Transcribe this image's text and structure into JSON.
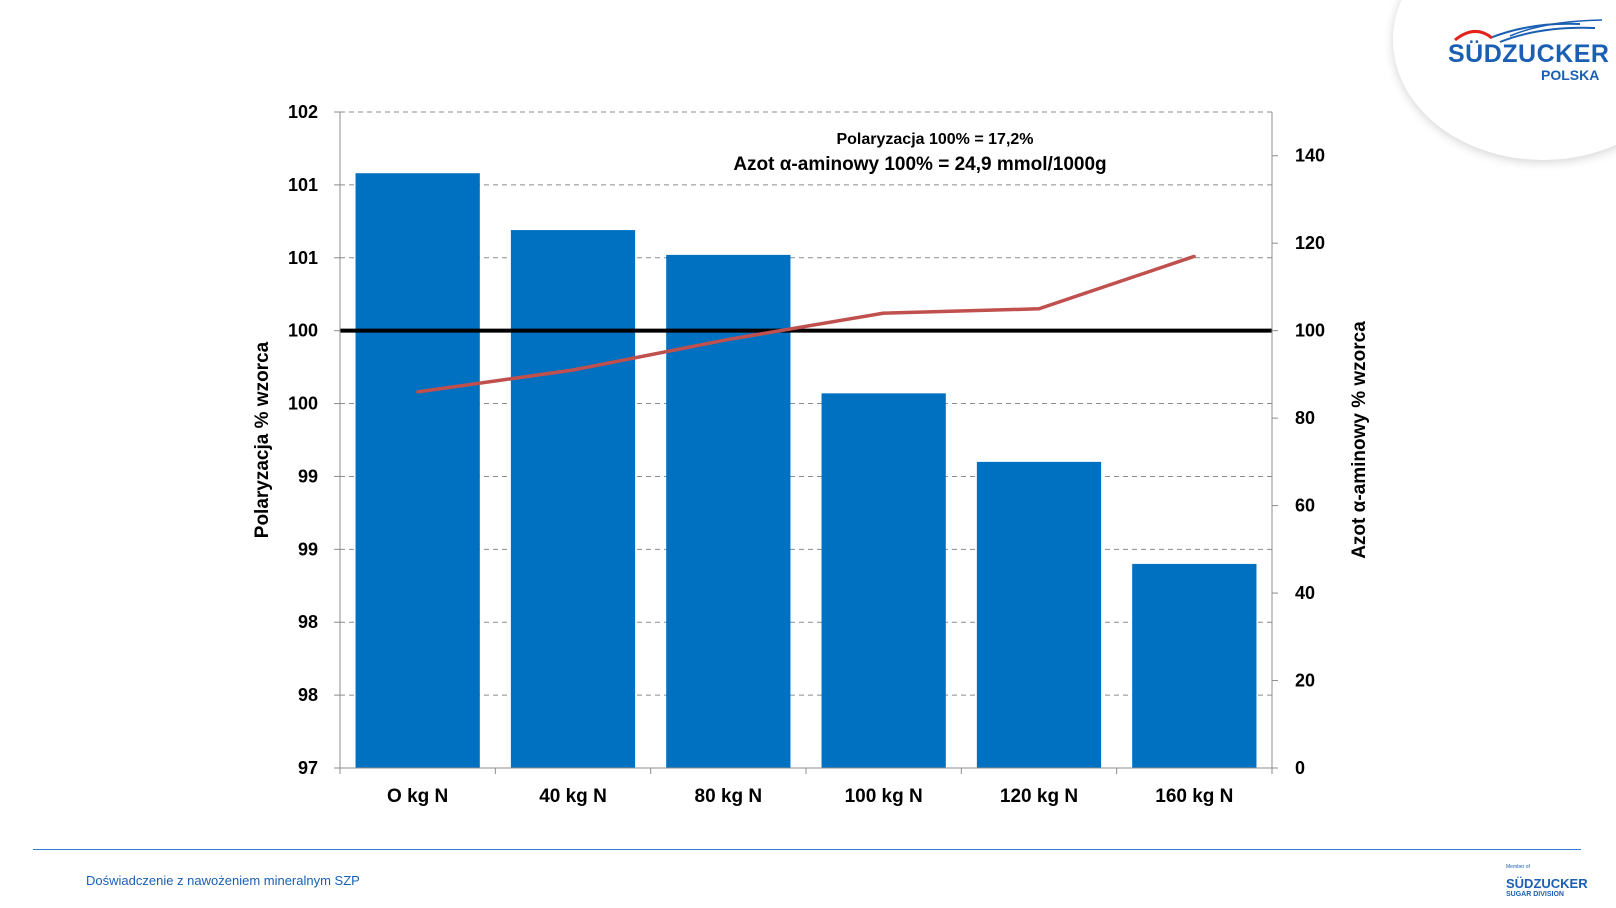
{
  "logo": {
    "brand": "SÜDZUCKER",
    "sub": "POLSKA"
  },
  "footer": {
    "caption": "Doświadczenie z nawożeniem mineralnym SZP",
    "logo_member": "Member of",
    "logo_brand": "SÜDZUCKER",
    "logo_division": "SUGAR DIVISION"
  },
  "chart_data": {
    "type": "bar",
    "annotation_line1": "Polaryzacja 100% = 17,2%",
    "annotation_line2": "Azot α-aminowy 100% = 24,9 mmol/1000g",
    "categories": [
      "O kg N",
      "40 kg N",
      "80 kg N",
      "100 kg N",
      "120 kg N",
      "160 kg N"
    ],
    "y_left": {
      "label": "Polaryzacja % wzorca",
      "range": [
        97,
        101.5
      ],
      "ticks": [
        97,
        97.5,
        98,
        98.5,
        99,
        99.5,
        100,
        100.5,
        101,
        101.5
      ],
      "tick_labels": [
        "97",
        "98",
        "98",
        "99",
        "99",
        "100",
        "100",
        "101",
        "101",
        "102"
      ]
    },
    "y_right": {
      "label": "Azot α-aminowy % wzorca",
      "range": [
        0,
        150
      ],
      "ticks": [
        0,
        20,
        40,
        60,
        80,
        100,
        120,
        140
      ],
      "tick_labels": [
        "0",
        "20",
        "40",
        "60",
        "80",
        "100",
        "120",
        "140"
      ]
    },
    "series": [
      {
        "type": "bar",
        "axis": "left",
        "color": "#0070c0",
        "values": [
          101.08,
          100.69,
          100.52,
          99.57,
          99.1,
          98.4
        ]
      },
      {
        "type": "line",
        "axis": "right",
        "color": "#c0504d",
        "values": [
          86,
          91,
          98,
          104,
          105,
          117
        ]
      }
    ],
    "reference_line": {
      "axis": "left",
      "value": 100,
      "color": "#000000"
    },
    "grid": true
  }
}
